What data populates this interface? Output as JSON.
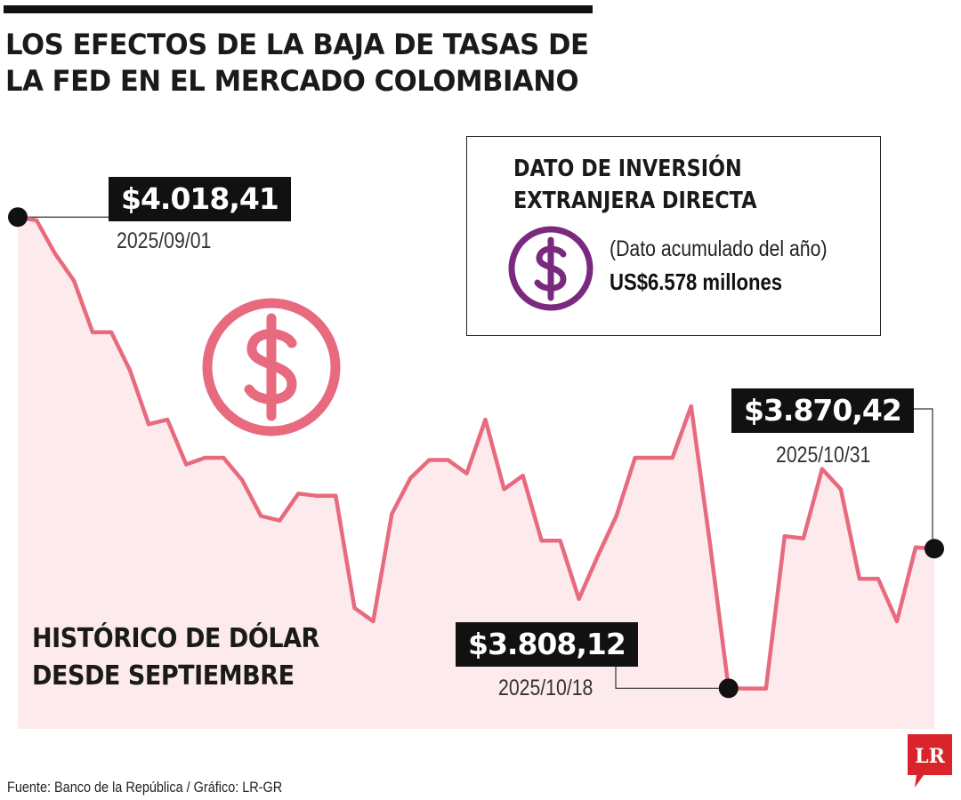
{
  "title_line1": "LOS EFECTOS DE LA BAJA DE TASAS DE",
  "title_line2": "LA FED EN EL MERCADO COLOMBIANO",
  "colors": {
    "line": "#e86a7e",
    "area": "#fdeaec",
    "icon_red": "#e86a7e",
    "icon_purple": "#7a2a7e",
    "tag_bg": "#111111",
    "logo_red": "#d8242a"
  },
  "fdi_box": {
    "title_line1": "DATO DE INVERSIÓN",
    "title_line2": "EXTRANJERA DIRECTA",
    "note": "(Dato acumulado del año)",
    "value": "US$6.578 millones",
    "icon": "dollar-circle-icon"
  },
  "series_caption": {
    "line1": "HISTÓRICO DE DÓLAR",
    "line2": "DESDE SEPTIEMBRE"
  },
  "source": "Fuente: Banco de la República / Gráfico: LR-GR",
  "logo_text": "LR",
  "chart_data": {
    "type": "area",
    "title": "HISTÓRICO DE DÓLAR DESDE SEPTIEMBRE",
    "xlabel": "",
    "ylabel": "",
    "ylim": [
      3790,
      4030
    ],
    "grid": false,
    "values": [
      4018.41,
      4017.0,
      4002.0,
      3990.0,
      3967.0,
      3967.0,
      3950.0,
      3926.0,
      3928.0,
      3908.0,
      3911.0,
      3911.0,
      3901.0,
      3885.0,
      3883.0,
      3895.0,
      3894.0,
      3894.0,
      3844.0,
      3838.0,
      3886.0,
      3902.0,
      3910.0,
      3910.0,
      3904.0,
      3928.0,
      3897.0,
      3903.0,
      3874.0,
      3874.0,
      3848.0,
      3867.0,
      3885.0,
      3911.0,
      3911.0,
      3911.0,
      3934.0,
      3873.0,
      3808.12,
      3808.0,
      3808.0,
      3876.0,
      3875.0,
      3906.0,
      3897.0,
      3857.0,
      3857.0,
      3838.0,
      3871.0,
      3870.42
    ],
    "highlights": [
      {
        "label": "$4.018,41",
        "date": "2025/09/01",
        "value": 4018.41
      },
      {
        "label": "$3.808,12",
        "date": "2025/10/18",
        "value": 3808.12
      },
      {
        "label": "$3.870,42",
        "date": "2025/10/31",
        "value": 3870.42
      }
    ]
  }
}
